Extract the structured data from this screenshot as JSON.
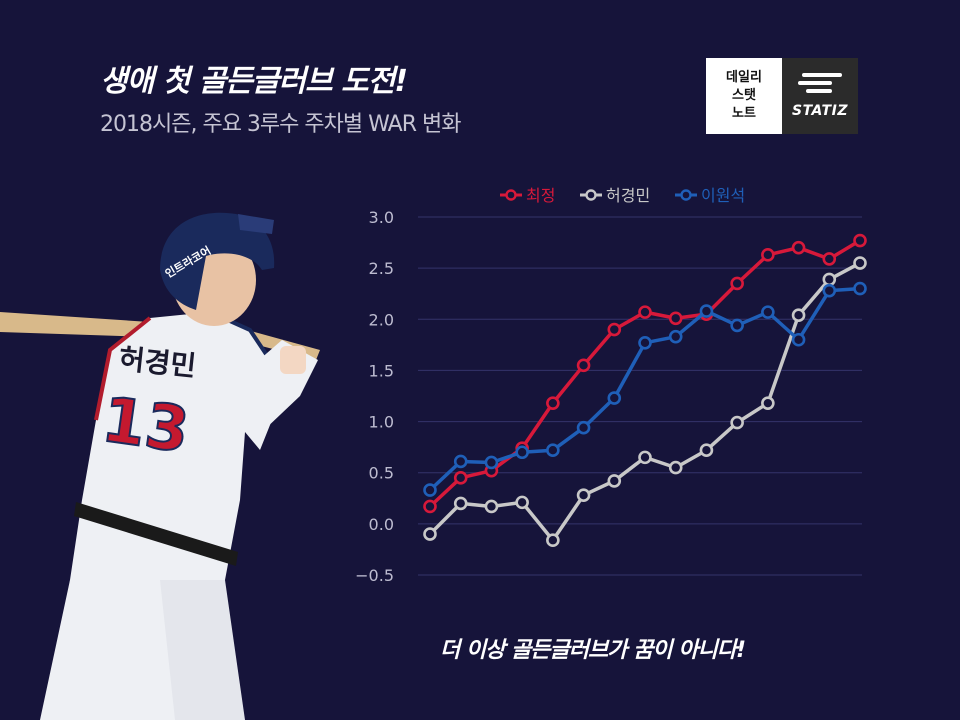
{
  "header": {
    "title": "생애 첫 골든글러브 도전!",
    "subtitle": "2018시즌, 주요 3루수 주차별 WAR 변화"
  },
  "badge": {
    "line1": "데일리",
    "line2": "스탯",
    "line3": "노트",
    "brand": "STATIZ"
  },
  "player": {
    "name_on_jersey": "허경민",
    "number": "13",
    "helmet_text": "인트라코어"
  },
  "tagline": "더 이상 골든글러브가 꿈이 아니다!",
  "colors": {
    "background": "#16143a",
    "series_1": "#d7193a",
    "series_2": "#c8c8c8",
    "series_3": "#1f5fb8"
  },
  "chart_data": {
    "type": "line",
    "title": "",
    "xlabel": "",
    "ylabel": "",
    "ylim": [
      -0.5,
      3.0
    ],
    "yticks": [
      "3.0",
      "2.5",
      "2.0",
      "1.5",
      "1.0",
      "0.5",
      "0.0",
      "−0.5"
    ],
    "ytick_values": [
      3.0,
      2.5,
      2.0,
      1.5,
      1.0,
      0.5,
      0.0,
      -0.5
    ],
    "grid": true,
    "legend": "top",
    "x": [
      1,
      2,
      3,
      4,
      5,
      6,
      7,
      8,
      9,
      10,
      11,
      12,
      13,
      14,
      15
    ],
    "series": [
      {
        "name": "최정",
        "color": "#d7193a",
        "values": [
          0.17,
          0.45,
          0.52,
          0.74,
          1.18,
          1.55,
          1.9,
          2.07,
          2.01,
          2.05,
          2.35,
          2.63,
          2.7,
          2.59,
          2.77
        ]
      },
      {
        "name": "허경민",
        "color": "#c8c8c8",
        "values": [
          -0.1,
          0.2,
          0.17,
          0.21,
          -0.16,
          0.28,
          0.42,
          0.65,
          0.55,
          0.72,
          0.99,
          1.18,
          2.04,
          2.39,
          2.55
        ]
      },
      {
        "name": "이원석",
        "color": "#1f5fb8",
        "values": [
          0.33,
          0.61,
          0.6,
          0.7,
          0.72,
          0.94,
          1.23,
          1.77,
          1.83,
          2.08,
          1.94,
          2.07,
          1.8,
          2.28,
          2.3
        ]
      }
    ]
  }
}
